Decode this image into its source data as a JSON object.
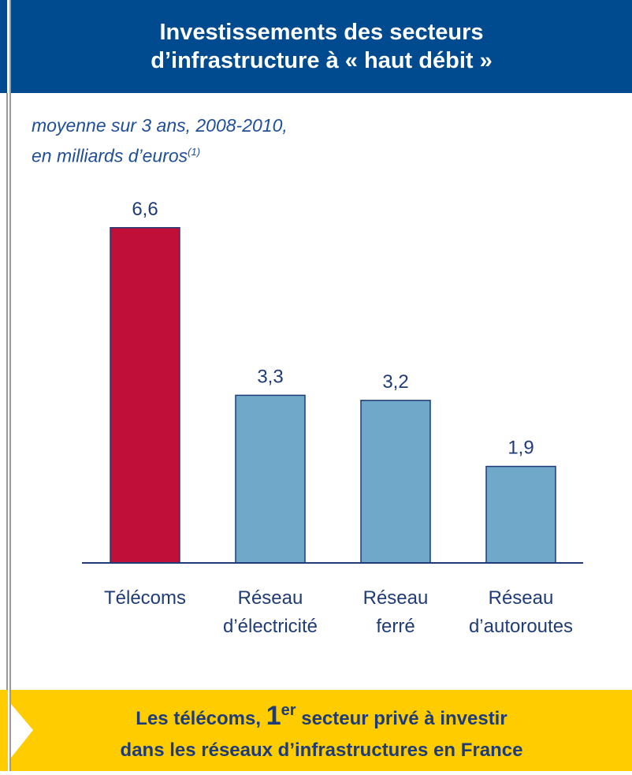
{
  "chart_data": {
    "type": "bar",
    "title": [
      "Investissements des secteurs",
      "d’infrastructure à « haut débit »"
    ],
    "subtitle": [
      "moyenne sur 3 ans, 2008-2010,",
      "en milliards d’euros"
    ],
    "subtitle_note": "(1)",
    "categories": [
      "Télécoms",
      "Réseau d’électricité",
      "Réseau ferré",
      "Réseau d’autoroutes"
    ],
    "values": [
      6.6,
      3.3,
      3.2,
      1.9
    ],
    "value_labels": [
      "6,6",
      "3,3",
      "3,2",
      "1,9"
    ],
    "colors": [
      "#c0103a",
      "#6fa8c9",
      "#6fa8c9",
      "#6fa8c9"
    ],
    "ylim": [
      0,
      7
    ]
  },
  "footer": {
    "before": "Les télécoms,",
    "number": "1",
    "sup": "er",
    "after": "secteur privé à investir",
    "line2": "dans les réseaux d’infrastructures en France"
  }
}
